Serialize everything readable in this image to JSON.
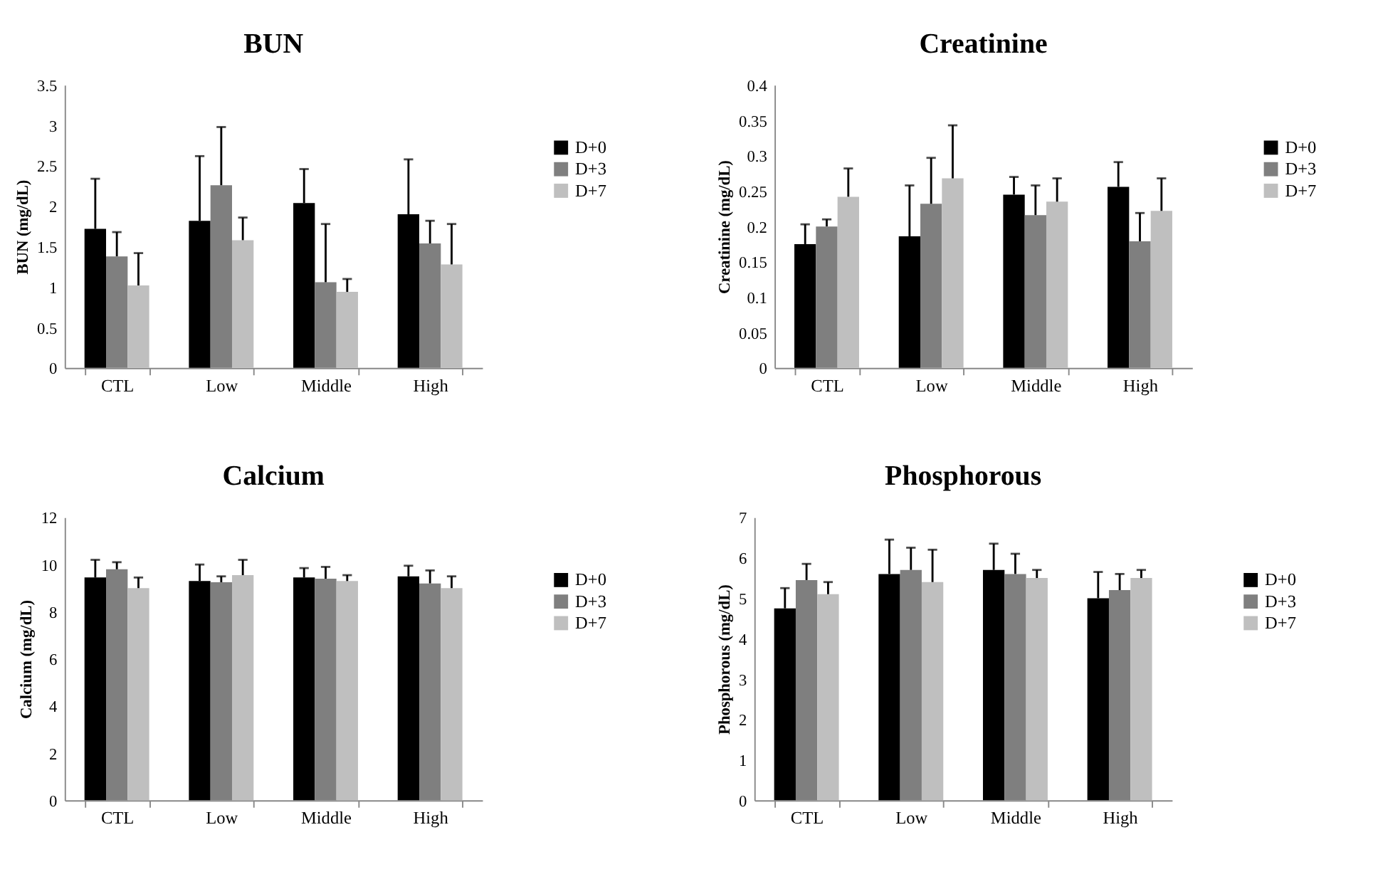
{
  "chart_data": [
    {
      "type": "bar",
      "title": "BUN",
      "ylabel": "BUN (mg/dL)",
      "categories": [
        "CTL",
        "Low",
        "Middle",
        "High"
      ],
      "ylim": [
        0,
        3.5
      ],
      "yticks": [
        0,
        0.5,
        1,
        1.5,
        2,
        2.5,
        3,
        3.5
      ],
      "grid": false,
      "legend": "right",
      "series": [
        {
          "name": "D+0",
          "color": "#000000",
          "values": [
            1.72,
            1.82,
            2.04,
            1.9
          ],
          "errors": [
            [
              1.72,
              2.34
            ],
            [
              1.82,
              2.62
            ],
            [
              2.04,
              2.46
            ],
            [
              1.9,
              2.58
            ]
          ]
        },
        {
          "name": "D+3",
          "color": "#7f7f7f",
          "values": [
            1.38,
            2.26,
            1.06,
            1.54
          ],
          "errors": [
            [
              1.38,
              1.68
            ],
            [
              2.26,
              2.98
            ],
            [
              1.06,
              1.78
            ],
            [
              1.54,
              1.82
            ]
          ]
        },
        {
          "name": "D+7",
          "color": "#bfbfbf",
          "values": [
            1.02,
            1.58,
            0.94,
            1.28
          ],
          "errors": [
            [
              1.02,
              1.42
            ],
            [
              1.58,
              1.86
            ],
            [
              0.94,
              1.1
            ],
            [
              1.28,
              1.78
            ]
          ]
        }
      ]
    },
    {
      "type": "bar",
      "title": "Creatinine",
      "ylabel": "Creatinine (mg/dL)",
      "categories": [
        "CTL",
        "Low",
        "Middle",
        "High"
      ],
      "ylim": [
        0,
        0.4
      ],
      "yticks": [
        0,
        0.05,
        0.1,
        0.15,
        0.2,
        0.25,
        0.3,
        0.35,
        0.4
      ],
      "grid": false,
      "legend": "right",
      "series": [
        {
          "name": "D+0",
          "color": "#000000",
          "values": [
            0.175,
            0.186,
            0.245,
            0.256
          ],
          "errors": [
            [
              0.175,
              0.203
            ],
            [
              0.186,
              0.258
            ],
            [
              0.245,
              0.27
            ],
            [
              0.256,
              0.291
            ]
          ]
        },
        {
          "name": "D+3",
          "color": "#7f7f7f",
          "values": [
            0.2,
            0.232,
            0.216,
            0.179
          ],
          "errors": [
            [
              0.2,
              0.21
            ],
            [
              0.232,
              0.297
            ],
            [
              0.216,
              0.258
            ],
            [
              0.179,
              0.219
            ]
          ]
        },
        {
          "name": "D+7",
          "color": "#bfbfbf",
          "values": [
            0.242,
            0.268,
            0.235,
            0.222
          ],
          "errors": [
            [
              0.242,
              0.282
            ],
            [
              0.268,
              0.343
            ],
            [
              0.235,
              0.268
            ],
            [
              0.222,
              0.268
            ]
          ]
        }
      ]
    },
    {
      "type": "bar",
      "title": "Calcium",
      "ylabel": "Calcium (mg/dL)",
      "categories": [
        "CTL",
        "Low",
        "Middle",
        "High"
      ],
      "ylim": [
        0,
        12
      ],
      "yticks": [
        0,
        2,
        4,
        6,
        8,
        10,
        12
      ],
      "grid": false,
      "legend": "right",
      "series": [
        {
          "name": "D+0",
          "color": "#000000",
          "values": [
            9.45,
            9.3,
            9.45,
            9.5
          ],
          "errors": [
            [
              9.45,
              10.2
            ],
            [
              9.3,
              10.0
            ],
            [
              9.45,
              9.85
            ],
            [
              9.5,
              9.95
            ]
          ]
        },
        {
          "name": "D+3",
          "color": "#7f7f7f",
          "values": [
            9.8,
            9.25,
            9.4,
            9.2
          ],
          "errors": [
            [
              9.8,
              10.1
            ],
            [
              9.25,
              9.5
            ],
            [
              9.4,
              9.9
            ],
            [
              9.2,
              9.75
            ]
          ]
        },
        {
          "name": "D+7",
          "color": "#bfbfbf",
          "values": [
            9.0,
            9.55,
            9.3,
            9.0
          ],
          "errors": [
            [
              9.0,
              9.45
            ],
            [
              9.55,
              10.2
            ],
            [
              9.3,
              9.55
            ],
            [
              9.0,
              9.5
            ]
          ]
        }
      ]
    },
    {
      "type": "bar",
      "title": "Phosphorous",
      "ylabel": "Phosphorous (mg/dL)",
      "categories": [
        "CTL",
        "Low",
        "Middle",
        "High"
      ],
      "ylim": [
        0,
        7
      ],
      "yticks": [
        0,
        1,
        2,
        3,
        4,
        5,
        6,
        7
      ],
      "grid": false,
      "legend": "right",
      "series": [
        {
          "name": "D+0",
          "color": "#000000",
          "values": [
            4.75,
            5.6,
            5.7,
            5.0
          ],
          "errors": [
            [
              4.75,
              5.25
            ],
            [
              5.6,
              6.45
            ],
            [
              5.7,
              6.35
            ],
            [
              5.0,
              5.65
            ]
          ]
        },
        {
          "name": "D+3",
          "color": "#7f7f7f",
          "values": [
            5.45,
            5.7,
            5.6,
            5.2
          ],
          "errors": [
            [
              5.45,
              5.85
            ],
            [
              5.7,
              6.25
            ],
            [
              5.6,
              6.1
            ],
            [
              5.2,
              5.6
            ]
          ]
        },
        {
          "name": "D+7",
          "color": "#bfbfbf",
          "values": [
            5.1,
            5.4,
            5.5,
            5.5
          ],
          "errors": [
            [
              5.1,
              5.4
            ],
            [
              5.4,
              6.2
            ],
            [
              5.5,
              5.7
            ],
            [
              5.5,
              5.7
            ]
          ]
        }
      ]
    }
  ]
}
